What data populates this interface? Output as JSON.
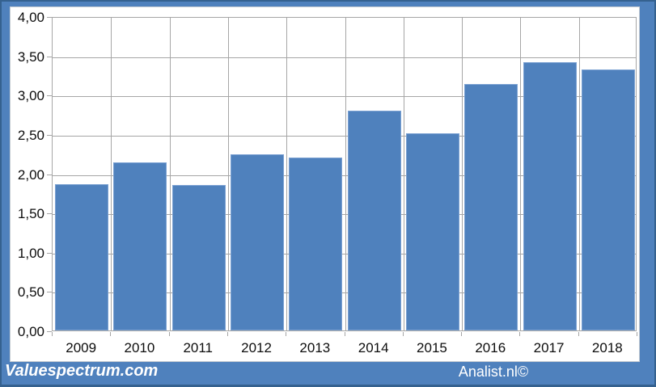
{
  "chart_data": {
    "type": "bar",
    "title": "",
    "xlabel": "",
    "ylabel": "",
    "categories": [
      "2009",
      "2010",
      "2011",
      "2012",
      "2013",
      "2014",
      "2015",
      "2016",
      "2017",
      "2018"
    ],
    "values": [
      1.86,
      2.14,
      1.85,
      2.24,
      2.2,
      2.8,
      2.51,
      3.14,
      3.41,
      3.32
    ],
    "ylim": [
      0,
      4
    ],
    "grid": true,
    "legend": false,
    "yticks": [
      {
        "v": 4.0,
        "label": "4,00"
      },
      {
        "v": 3.5,
        "label": "3,50"
      },
      {
        "v": 3.0,
        "label": "3,00"
      },
      {
        "v": 2.5,
        "label": "2,50"
      },
      {
        "v": 2.0,
        "label": "2,00"
      },
      {
        "v": 1.5,
        "label": "1,50"
      },
      {
        "v": 1.0,
        "label": "1,00"
      },
      {
        "v": 0.5,
        "label": "0,50"
      },
      {
        "v": 0.0,
        "label": "0,00"
      }
    ]
  },
  "colors": {
    "bar_fill": "#4f81bd",
    "bar_border": "#7ba1d2",
    "frame_background": "#4f81bd",
    "frame_border": "#35618f",
    "gridline": "#a6a6a6",
    "axis_text": "#0d0d0d",
    "footer_text": "#ffffff"
  },
  "footer": {
    "left_text": "Valuespectrum.com",
    "right_text": "Analist.nl©"
  }
}
